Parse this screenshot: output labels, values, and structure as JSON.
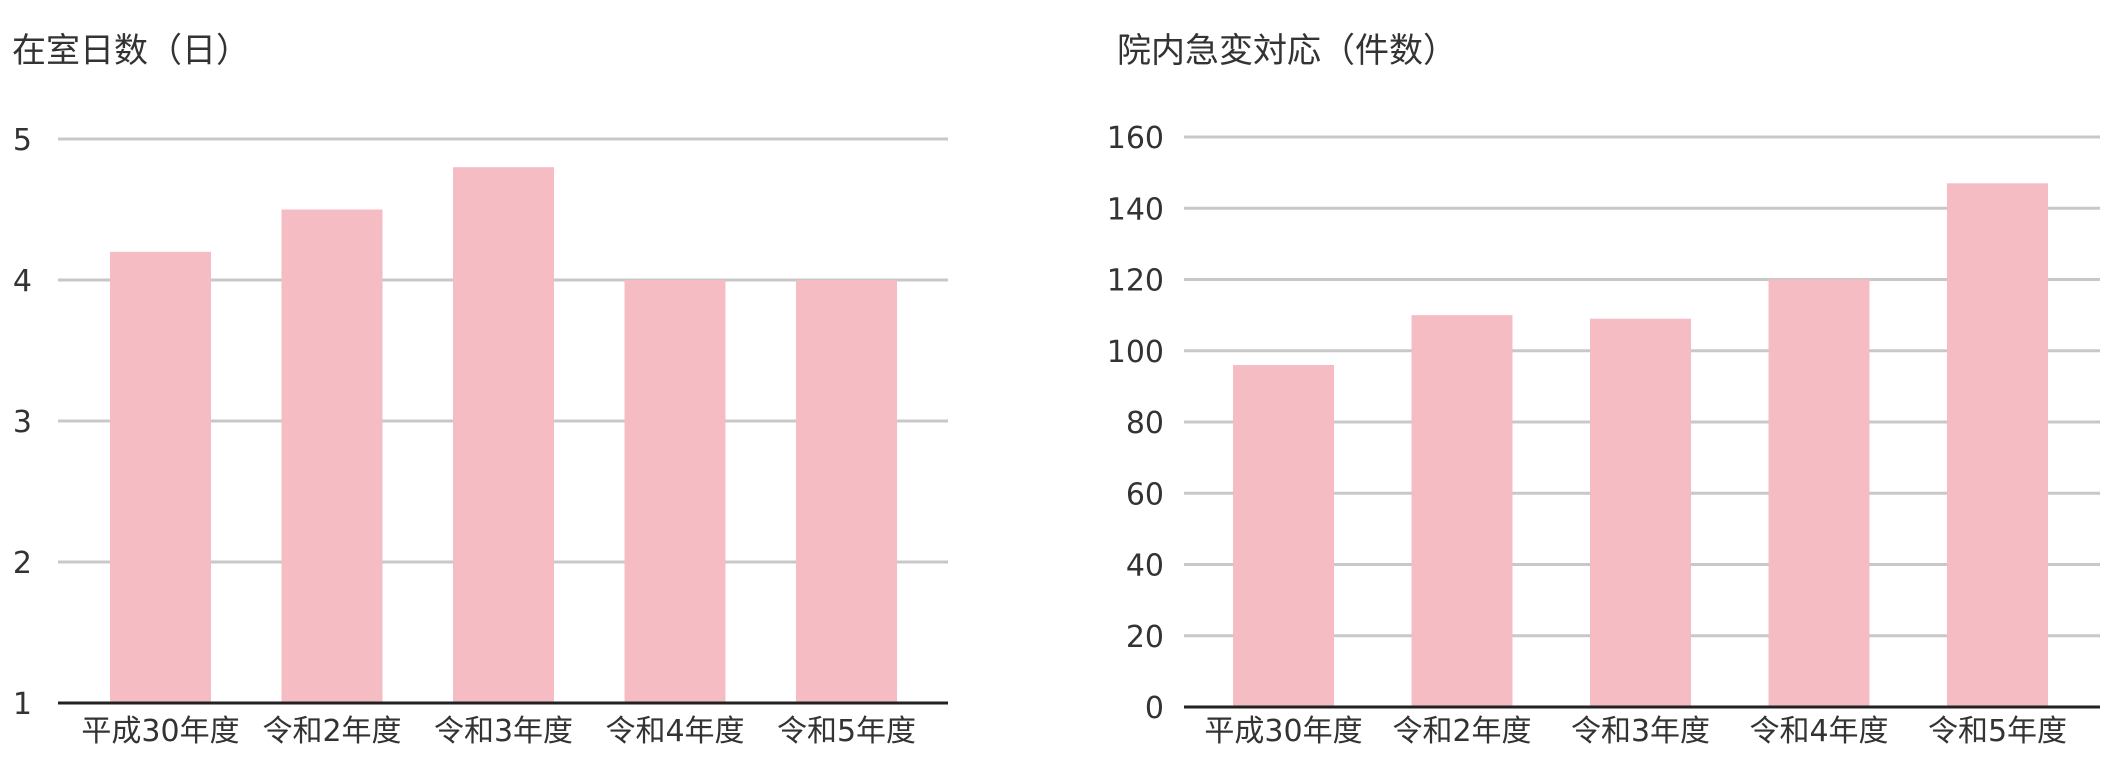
{
  "colors": {
    "bar": "#f5bcc4",
    "grid": "#c8c8c8",
    "axis": "#222222",
    "text": "#333333"
  },
  "chart_data": [
    {
      "type": "bar",
      "title": "在室日数（日）",
      "categories": [
        "平成30年度",
        "令和2年度",
        "令和3年度",
        "令和4年度",
        "令和5年度"
      ],
      "values": [
        4.2,
        4.5,
        4.8,
        4.0,
        4.0
      ],
      "ylim": [
        1,
        5
      ],
      "yticks": [
        1,
        2,
        3,
        4,
        5
      ],
      "xlabel": "",
      "ylabel": "",
      "grid": true,
      "legend": "none"
    },
    {
      "type": "bar",
      "title": "院内急変対応（件数）",
      "categories": [
        "平成30年度",
        "令和2年度",
        "令和3年度",
        "令和4年度",
        "令和5年度"
      ],
      "values": [
        96,
        110,
        109,
        120,
        147
      ],
      "ylim": [
        0,
        160
      ],
      "yticks": [
        0,
        20,
        40,
        60,
        80,
        100,
        120,
        140,
        160
      ],
      "xlabel": "",
      "ylabel": "",
      "grid": true,
      "legend": "none"
    }
  ]
}
